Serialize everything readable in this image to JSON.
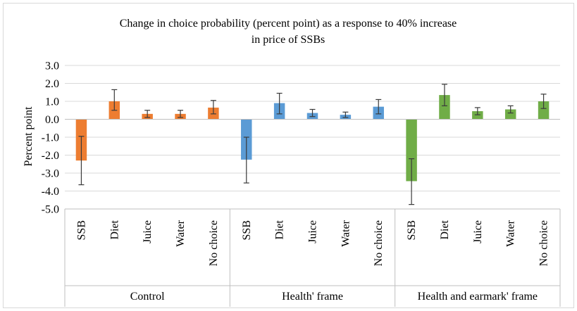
{
  "chart_data": {
    "type": "bar",
    "title_lines": [
      "Change in  choice probability  (percent point)  as a response to 40% increase",
      "in price of SSBs"
    ],
    "ylabel": "Percent point",
    "ylim": [
      -5.0,
      3.0
    ],
    "ytick_step": 1.0,
    "ytick_labels": [
      "3.0",
      "2.0",
      "1.0",
      "0.0",
      "-1.0",
      "-2.0",
      "-3.0",
      "-4.0",
      "-5.0"
    ],
    "grid": true,
    "legend": "none",
    "groups": [
      {
        "name": "Control",
        "color": "#ED7D31",
        "categories": [
          "SSB",
          "Diet",
          "Juice",
          "Water",
          "No choice"
        ],
        "values": [
          -2.3,
          1.0,
          0.3,
          0.3,
          0.65
        ],
        "err_low": [
          -3.65,
          0.5,
          0.1,
          0.1,
          0.3
        ],
        "err_high": [
          -0.95,
          1.65,
          0.5,
          0.5,
          1.05
        ]
      },
      {
        "name": "Health' frame",
        "color": "#5B9BD5",
        "categories": [
          "SSB",
          "Diet",
          "Juice",
          "Water",
          "No choice"
        ],
        "values": [
          -2.25,
          0.9,
          0.35,
          0.25,
          0.7
        ],
        "err_low": [
          -3.55,
          0.3,
          0.15,
          0.1,
          0.3
        ],
        "err_high": [
          -1.0,
          1.45,
          0.55,
          0.4,
          1.1
        ]
      },
      {
        "name": "Health and earmark' frame",
        "color": "#70AD47",
        "categories": [
          "SSB",
          "Diet",
          "Juice",
          "Water",
          "No choice"
        ],
        "values": [
          -3.45,
          1.35,
          0.45,
          0.55,
          1.0
        ],
        "err_low": [
          -4.75,
          0.75,
          0.25,
          0.35,
          0.6
        ],
        "err_high": [
          -2.2,
          1.95,
          0.65,
          0.75,
          1.4
        ]
      }
    ]
  }
}
